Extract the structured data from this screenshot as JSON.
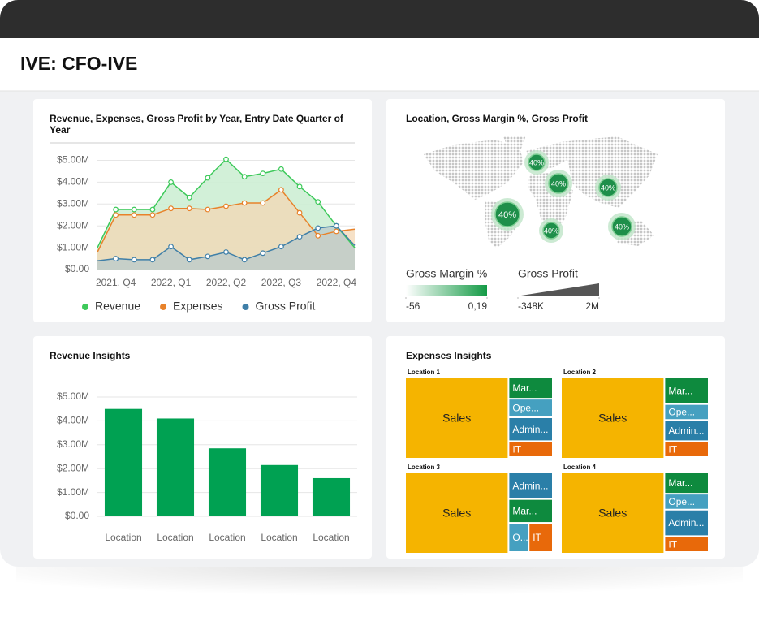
{
  "header": {
    "title": "IVE: CFO-IVE"
  },
  "chart_data": [
    {
      "type": "line",
      "title": "Revenue, Expenses, Gross Profit by Year, Entry Date Quarter of Year",
      "categories": [
        null,
        "2021, Q4",
        null,
        null,
        "2022, Q1",
        null,
        null,
        "2022, Q2",
        null,
        null,
        "2022, Q3",
        null,
        null,
        "2022, Q4",
        null
      ],
      "series": [
        {
          "name": "Revenue",
          "color": "#3dc95a",
          "values": [
            1000000,
            2750000,
            2750000,
            2750000,
            4000000,
            3300000,
            4200000,
            5050000,
            4250000,
            4400000,
            4600000,
            3800000,
            3100000,
            2000000,
            1000000
          ]
        },
        {
          "name": "Expenses",
          "color": "#e8822a",
          "values": [
            800000,
            2500000,
            2500000,
            2500000,
            2800000,
            2800000,
            2750000,
            2900000,
            3050000,
            3050000,
            3650000,
            2600000,
            1550000,
            1750000,
            1850000
          ]
        },
        {
          "name": "Gross Profit",
          "color": "#3f7fa8",
          "values": [
            400000,
            500000,
            450000,
            450000,
            1050000,
            450000,
            600000,
            800000,
            450000,
            750000,
            1050000,
            1500000,
            1900000,
            2000000,
            1100000
          ]
        }
      ],
      "ylim": [
        0,
        5800000
      ],
      "yticks": [
        {
          "value": 0,
          "label": "$0.00"
        },
        {
          "value": 1000000,
          "label": "$1.00M"
        },
        {
          "value": 2000000,
          "label": "$2.00M"
        },
        {
          "value": 3000000,
          "label": "$3.00M"
        },
        {
          "value": 4000000,
          "label": "$4.00M"
        },
        {
          "value": 5000000,
          "label": "$5.00M"
        }
      ],
      "grid": true,
      "legend": "bottom"
    },
    {
      "type": "map",
      "title": "Location, Gross Margin %, Gross Profit",
      "values": [
        40,
        40,
        40,
        40,
        40,
        40
      ],
      "value_labels": [
        "40%",
        "40%",
        "40%",
        "40%",
        "40%",
        "40%"
      ],
      "color": "#1e8f4a",
      "color_legend": {
        "title": "Gross Margin %",
        "ticks": [
          -56,
          {
            "value": 0.19,
            "label": "0,19"
          }
        ]
      },
      "size_legend": {
        "title": "Gross Profit",
        "ticks": [
          {
            "value": -348000,
            "label": "-348K"
          },
          {
            "value": 2000000,
            "label": "2M"
          }
        ]
      }
    },
    {
      "type": "bar",
      "title": "Revenue Insights",
      "categories": [
        "Location",
        "Location",
        "Location",
        "Location",
        "Location"
      ],
      "values": [
        4500000,
        4100000,
        2850000,
        2150000,
        1600000
      ],
      "color": "#00a152",
      "ylim": [
        0,
        5000000
      ],
      "yticks": [
        {
          "value": 0,
          "label": "$0.00"
        },
        {
          "value": 1000000,
          "label": "$1.00M"
        },
        {
          "value": 2000000,
          "label": "$2.00M"
        },
        {
          "value": 3000000,
          "label": "$3.00M"
        },
        {
          "value": 4000000,
          "label": "$4.00M"
        },
        {
          "value": 5000000,
          "label": "$5.00M"
        }
      ],
      "grid": true
    },
    {
      "type": "treemap",
      "title": "Expenses Insights",
      "groups": [
        {
          "name": "Location 1",
          "items": [
            {
              "label": "Sales",
              "value": 70,
              "color": "#f5b400"
            },
            {
              "label": "Mar...",
              "value": 8,
              "color": "#0e8a3e"
            },
            {
              "label": "Ope...",
              "value": 7,
              "color": "#45a0c0"
            },
            {
              "label": "Admin...",
              "value": 9,
              "color": "#2a7fa8"
            },
            {
              "label": "IT",
              "value": 6,
              "color": "#e8690a"
            }
          ]
        },
        {
          "name": "Location 2",
          "items": [
            {
              "label": "Sales",
              "value": 70,
              "color": "#f5b400"
            },
            {
              "label": "Mar...",
              "value": 10,
              "color": "#0e8a3e"
            },
            {
              "label": "Ope...",
              "value": 6,
              "color": "#45a0c0"
            },
            {
              "label": "Admin...",
              "value": 8,
              "color": "#2a7fa8"
            },
            {
              "label": "IT",
              "value": 6,
              "color": "#e8690a"
            }
          ]
        },
        {
          "name": "Location 3",
          "items": [
            {
              "label": "Sales",
              "value": 70,
              "color": "#f5b400"
            },
            {
              "label": "Admin...",
              "value": 10,
              "color": "#2a7fa8"
            },
            {
              "label": "Mar...",
              "value": 9,
              "color": "#0e8a3e"
            },
            {
              "label": "O...",
              "value": 5,
              "color": "#45a0c0"
            },
            {
              "label": "IT",
              "value": 6,
              "color": "#e8690a"
            }
          ]
        },
        {
          "name": "Location 4",
          "items": [
            {
              "label": "Sales",
              "value": 70,
              "color": "#f5b400"
            },
            {
              "label": "Mar...",
              "value": 8,
              "color": "#0e8a3e"
            },
            {
              "label": "Ope...",
              "value": 6,
              "color": "#45a0c0"
            },
            {
              "label": "Admin...",
              "value": 10,
              "color": "#2a7fa8"
            },
            {
              "label": "IT",
              "value": 6,
              "color": "#e8690a"
            }
          ]
        }
      ]
    }
  ]
}
